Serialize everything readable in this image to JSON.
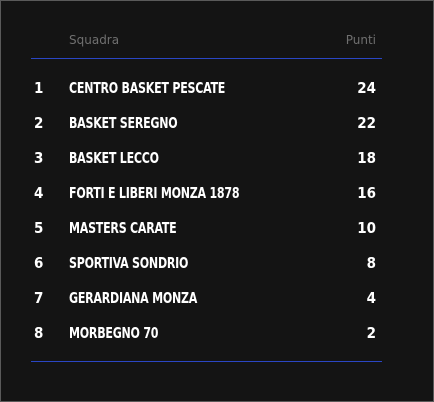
{
  "header": {
    "team_label": "Squadra",
    "points_label": "Punti"
  },
  "standings": [
    {
      "position": "1",
      "team": "CENTRO BASKET PESCATE",
      "points": "24"
    },
    {
      "position": "2",
      "team": "BASKET SEREGNO",
      "points": "22"
    },
    {
      "position": "3",
      "team": "BASKET LECCO",
      "points": "18"
    },
    {
      "position": "4",
      "team": "FORTI E LIBERI MONZA 1878",
      "points": "16"
    },
    {
      "position": "5",
      "team": "MASTERS CARATE",
      "points": "10"
    },
    {
      "position": "6",
      "team": "SPORTIVA SONDRIO",
      "points": "8"
    },
    {
      "position": "7",
      "team": "GERARDIANA MONZA",
      "points": "4"
    },
    {
      "position": "8",
      "team": "MORBEGNO 70",
      "points": "2"
    }
  ],
  "colors": {
    "background": "#141414",
    "accent_rule": "#2a46c4",
    "header_text": "#6f6f6f",
    "row_text": "#ffffff"
  }
}
